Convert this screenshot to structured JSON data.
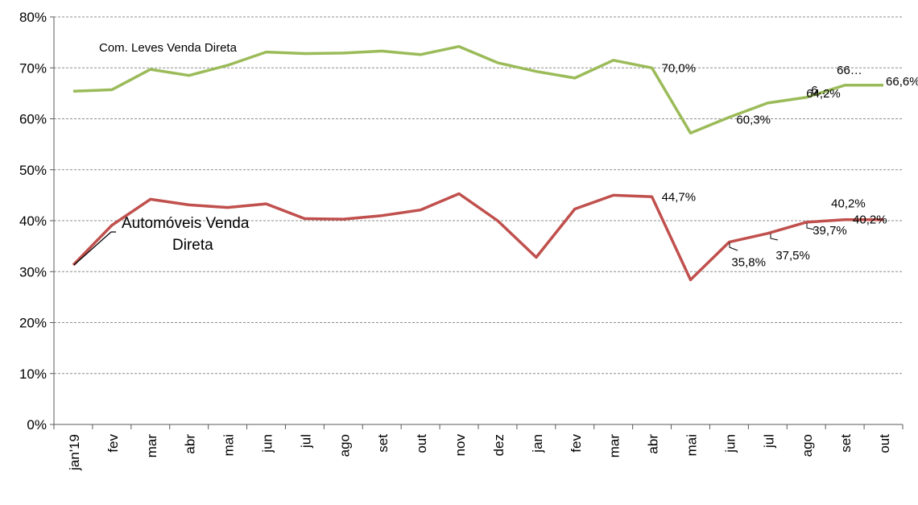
{
  "chart_data": {
    "type": "line",
    "categories": [
      "jan'19",
      "fev",
      "mar",
      "abr",
      "mai",
      "jun",
      "jul",
      "ago",
      "set",
      "out",
      "nov",
      "dez",
      "jan",
      "fev",
      "mar",
      "abr",
      "mai",
      "jun",
      "jul",
      "ago",
      "set",
      "out"
    ],
    "ylim": [
      0,
      80
    ],
    "yticks": [
      "0%",
      "10%",
      "20%",
      "30%",
      "40%",
      "50%",
      "60%",
      "70%",
      "80%"
    ],
    "grid": true,
    "series": [
      {
        "name": "Com. Leves Venda Direta",
        "color": "#9bbb59",
        "values": [
          65.4,
          65.7,
          69.7,
          68.5,
          70.5,
          73.1,
          72.8,
          72.9,
          73.3,
          72.6,
          74.2,
          71.0,
          69.3,
          68.0,
          71.5,
          70.0,
          57.2,
          60.3,
          63.1,
          64.2,
          66.6,
          66.6
        ],
        "data_labels": [
          {
            "index": 15,
            "text": "70,0%"
          },
          {
            "index": 17,
            "text": "60,3%"
          },
          {
            "index": 19,
            "text": "6…"
          },
          {
            "index": 19,
            "text": "64,2%"
          },
          {
            "index": 20,
            "text": "66…"
          },
          {
            "index": 21,
            "text": "66,6%"
          }
        ]
      },
      {
        "name": "Automóveis Venda Direta",
        "color": "#c0504d",
        "values": [
          31.3,
          39.1,
          44.2,
          43.1,
          42.6,
          43.3,
          40.4,
          40.3,
          41.0,
          42.1,
          45.3,
          40.0,
          32.8,
          42.3,
          45.0,
          44.7,
          28.4,
          35.8,
          37.5,
          39.7,
          40.2,
          40.2
        ],
        "data_labels": [
          {
            "index": 15,
            "text": "44,7%"
          },
          {
            "index": 17,
            "text": "35,8%"
          },
          {
            "index": 18,
            "text": "37,5%"
          },
          {
            "index": 19,
            "text": "39,7%"
          },
          {
            "index": 20,
            "text": "40,2%"
          },
          {
            "index": 21,
            "text": "40,2%"
          }
        ]
      }
    ],
    "series_labels": {
      "green": "Com. Leves Venda Direta",
      "red_line1": "Automóveis Venda",
      "red_line2": "Direta"
    }
  }
}
